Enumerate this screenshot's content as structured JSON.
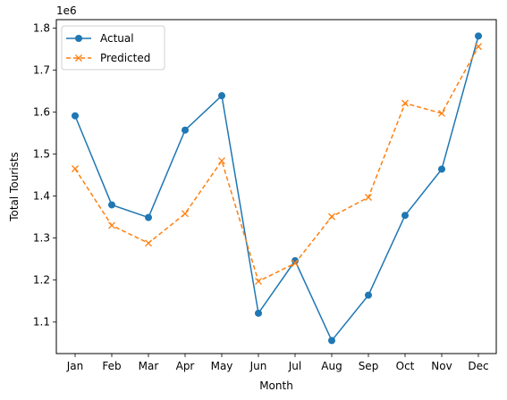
{
  "chart_data": {
    "type": "line",
    "title": "",
    "xlabel": "Month",
    "ylabel": "Total Tourists",
    "y_offset_label": "1e6",
    "categories": [
      "Jan",
      "Feb",
      "Mar",
      "Apr",
      "May",
      "Jun",
      "Jul",
      "Aug",
      "Sep",
      "Oct",
      "Nov",
      "Dec"
    ],
    "ylim": [
      1.025,
      1.82
    ],
    "yticks": [
      1.1,
      1.2,
      1.3,
      1.4,
      1.5,
      1.6,
      1.7,
      1.8
    ],
    "ytick_labels": [
      "1.1",
      "1.2",
      "1.3",
      "1.4",
      "1.5",
      "1.6",
      "1.7",
      "1.8"
    ],
    "grid": false,
    "legend_position": "top-left",
    "series": [
      {
        "name": "Actual",
        "color": "#1f77b4",
        "line_style": "solid",
        "marker": "circle",
        "values": [
          1.591,
          1.379,
          1.349,
          1.557,
          1.639,
          1.121,
          1.246,
          1.056,
          1.164,
          1.354,
          1.464,
          1.781
        ]
      },
      {
        "name": "Predicted",
        "color": "#ff7f0e",
        "line_style": "dashed",
        "marker": "x",
        "values": [
          1.465,
          1.33,
          1.288,
          1.358,
          1.484,
          1.197,
          1.24,
          1.351,
          1.397,
          1.621,
          1.597,
          1.756
        ]
      }
    ]
  }
}
